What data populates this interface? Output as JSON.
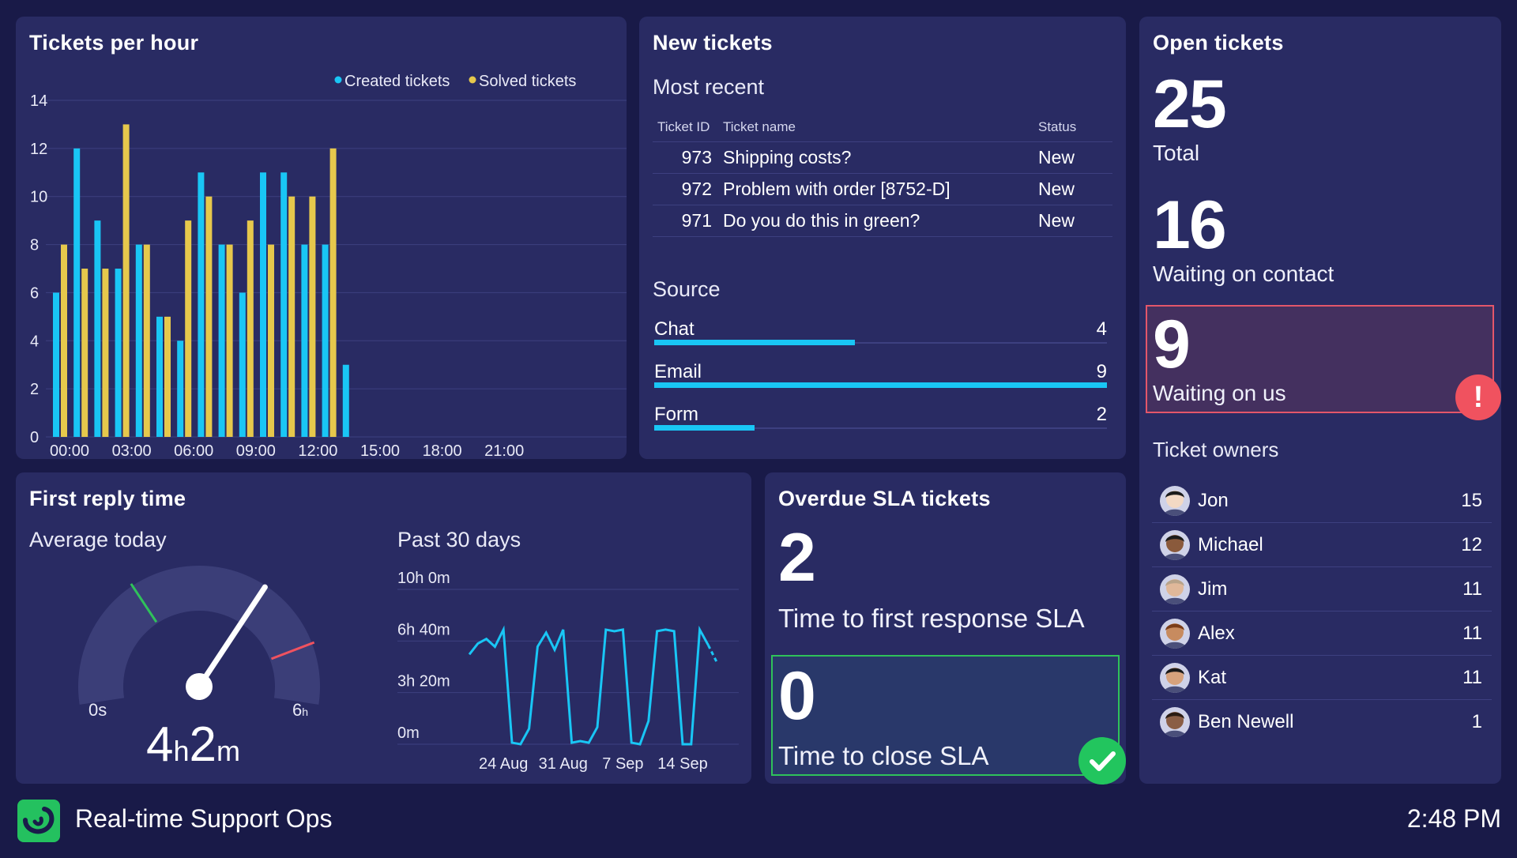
{
  "tickets_per_hour": {
    "title": "Tickets per hour",
    "legend": [
      "Created tickets",
      "Solved tickets"
    ],
    "colors": {
      "created": "#19c6f5",
      "solved": "#e6c84c"
    }
  },
  "chart_data": [
    {
      "type": "bar",
      "title": "Tickets per hour",
      "x_tick_labels": [
        "00:00",
        "03:00",
        "06:00",
        "09:00",
        "12:00",
        "15:00",
        "18:00",
        "21:00"
      ],
      "y_ticks": [
        0,
        2,
        4,
        6,
        8,
        10,
        12,
        14
      ],
      "ylim": [
        0,
        14
      ],
      "categories": [
        "00:00",
        "01:00",
        "02:00",
        "03:00",
        "04:00",
        "05:00",
        "06:00",
        "07:00",
        "08:00",
        "09:00",
        "10:00",
        "11:00",
        "12:00",
        "13:00",
        "14:00",
        "15:00",
        "16:00",
        "17:00",
        "18:00",
        "19:00",
        "20:00",
        "21:00",
        "22:00",
        "23:00"
      ],
      "series": [
        {
          "name": "Created tickets",
          "values": [
            6,
            12,
            9,
            7,
            8,
            5,
            4,
            11,
            8,
            6,
            11,
            11,
            8,
            8,
            3,
            null,
            null,
            null,
            null,
            null,
            null,
            null,
            null,
            null
          ]
        },
        {
          "name": "Solved tickets",
          "values": [
            8,
            7,
            7,
            13,
            8,
            5,
            9,
            10,
            8,
            9,
            8,
            10,
            10,
            12,
            null,
            null,
            null,
            null,
            null,
            null,
            null,
            null,
            null,
            null
          ]
        }
      ],
      "grid": true,
      "legend_position": "top-right"
    },
    {
      "type": "line",
      "title": "Past 30 days",
      "y_tick_labels": [
        "10h 0m",
        "6h 40m",
        "3h 20m",
        "0m"
      ],
      "ylim_hours": [
        0,
        10
      ],
      "x_tick_labels": [
        "24 Aug",
        "31 Aug",
        "7 Sep",
        "14 Sep"
      ],
      "x": [
        "20 Aug",
        "21 Aug",
        "22 Aug",
        "23 Aug",
        "24 Aug",
        "25 Aug",
        "26 Aug",
        "27 Aug",
        "28 Aug",
        "29 Aug",
        "30 Aug",
        "31 Aug",
        "1 Sep",
        "2 Sep",
        "3 Sep",
        "4 Sep",
        "5 Sep",
        "6 Sep",
        "7 Sep",
        "8 Sep",
        "9 Sep",
        "10 Sep",
        "11 Sep",
        "12 Sep",
        "13 Sep",
        "14 Sep",
        "15 Sep",
        "16 Sep",
        "17 Sep",
        "18 Sep"
      ],
      "values_hours": [
        5.8,
        6.5,
        6.8,
        6.3,
        7.4,
        0.1,
        0.0,
        1.0,
        6.3,
        7.2,
        6.1,
        7.4,
        0.1,
        0.2,
        0.1,
        1.1,
        7.4,
        7.3,
        7.4,
        0.1,
        0.0,
        1.5,
        7.3,
        7.4,
        7.3,
        0.0,
        0.0,
        7.4,
        6.4,
        5.3
      ],
      "last_segment_dashed": true,
      "grid": true
    }
  ],
  "new_tickets": {
    "title": "New tickets",
    "most_recent_label": "Most recent",
    "columns": [
      "Ticket ID",
      "Ticket name",
      "Status"
    ],
    "rows": [
      {
        "id": "973",
        "name": "Shipping costs?",
        "status": "New"
      },
      {
        "id": "972",
        "name": "Problem with order [8752-D]",
        "status": "New"
      },
      {
        "id": "971",
        "name": "Do you do this in green?",
        "status": "New"
      }
    ],
    "source_label": "Source",
    "sources": [
      {
        "label": "Chat",
        "value": "4",
        "fraction": 0.444
      },
      {
        "label": "Email",
        "value": "9",
        "fraction": 1.0
      },
      {
        "label": "Form",
        "value": "2",
        "fraction": 0.222
      }
    ]
  },
  "open_tickets": {
    "title": "Open tickets",
    "total_value": "25",
    "total_label": "Total",
    "waiting_contact_value": "16",
    "waiting_contact_label": "Waiting on contact",
    "waiting_us_value": "9",
    "waiting_us_label": "Waiting on us",
    "alert_symbol": "!",
    "owners_label": "Ticket owners",
    "owners": [
      {
        "name": "Jon",
        "count": "15"
      },
      {
        "name": "Michael",
        "count": "12"
      },
      {
        "name": "Jim",
        "count": "11"
      },
      {
        "name": "Alex",
        "count": "11"
      },
      {
        "name": "Kat",
        "count": "11"
      },
      {
        "name": "Ben Newell",
        "count": "1"
      }
    ]
  },
  "first_reply": {
    "title": "First reply time",
    "average_label": "Average today",
    "gauge_min": "0s",
    "gauge_max": "6",
    "gauge_max_unit": "h",
    "gauge_value_fraction": 0.67,
    "value_hours": "4",
    "value_hours_unit": "h",
    "value_minutes": "2",
    "value_minutes_unit": "m",
    "past_label": "Past 30 days"
  },
  "overdue_sla": {
    "title": "Overdue SLA tickets",
    "first_response_value": "2",
    "first_response_label": "Time to first response SLA",
    "close_value": "0",
    "close_label": "Time to close SLA"
  },
  "footer": {
    "app_title": "Real-time Support Ops",
    "clock": "2:48 PM"
  }
}
